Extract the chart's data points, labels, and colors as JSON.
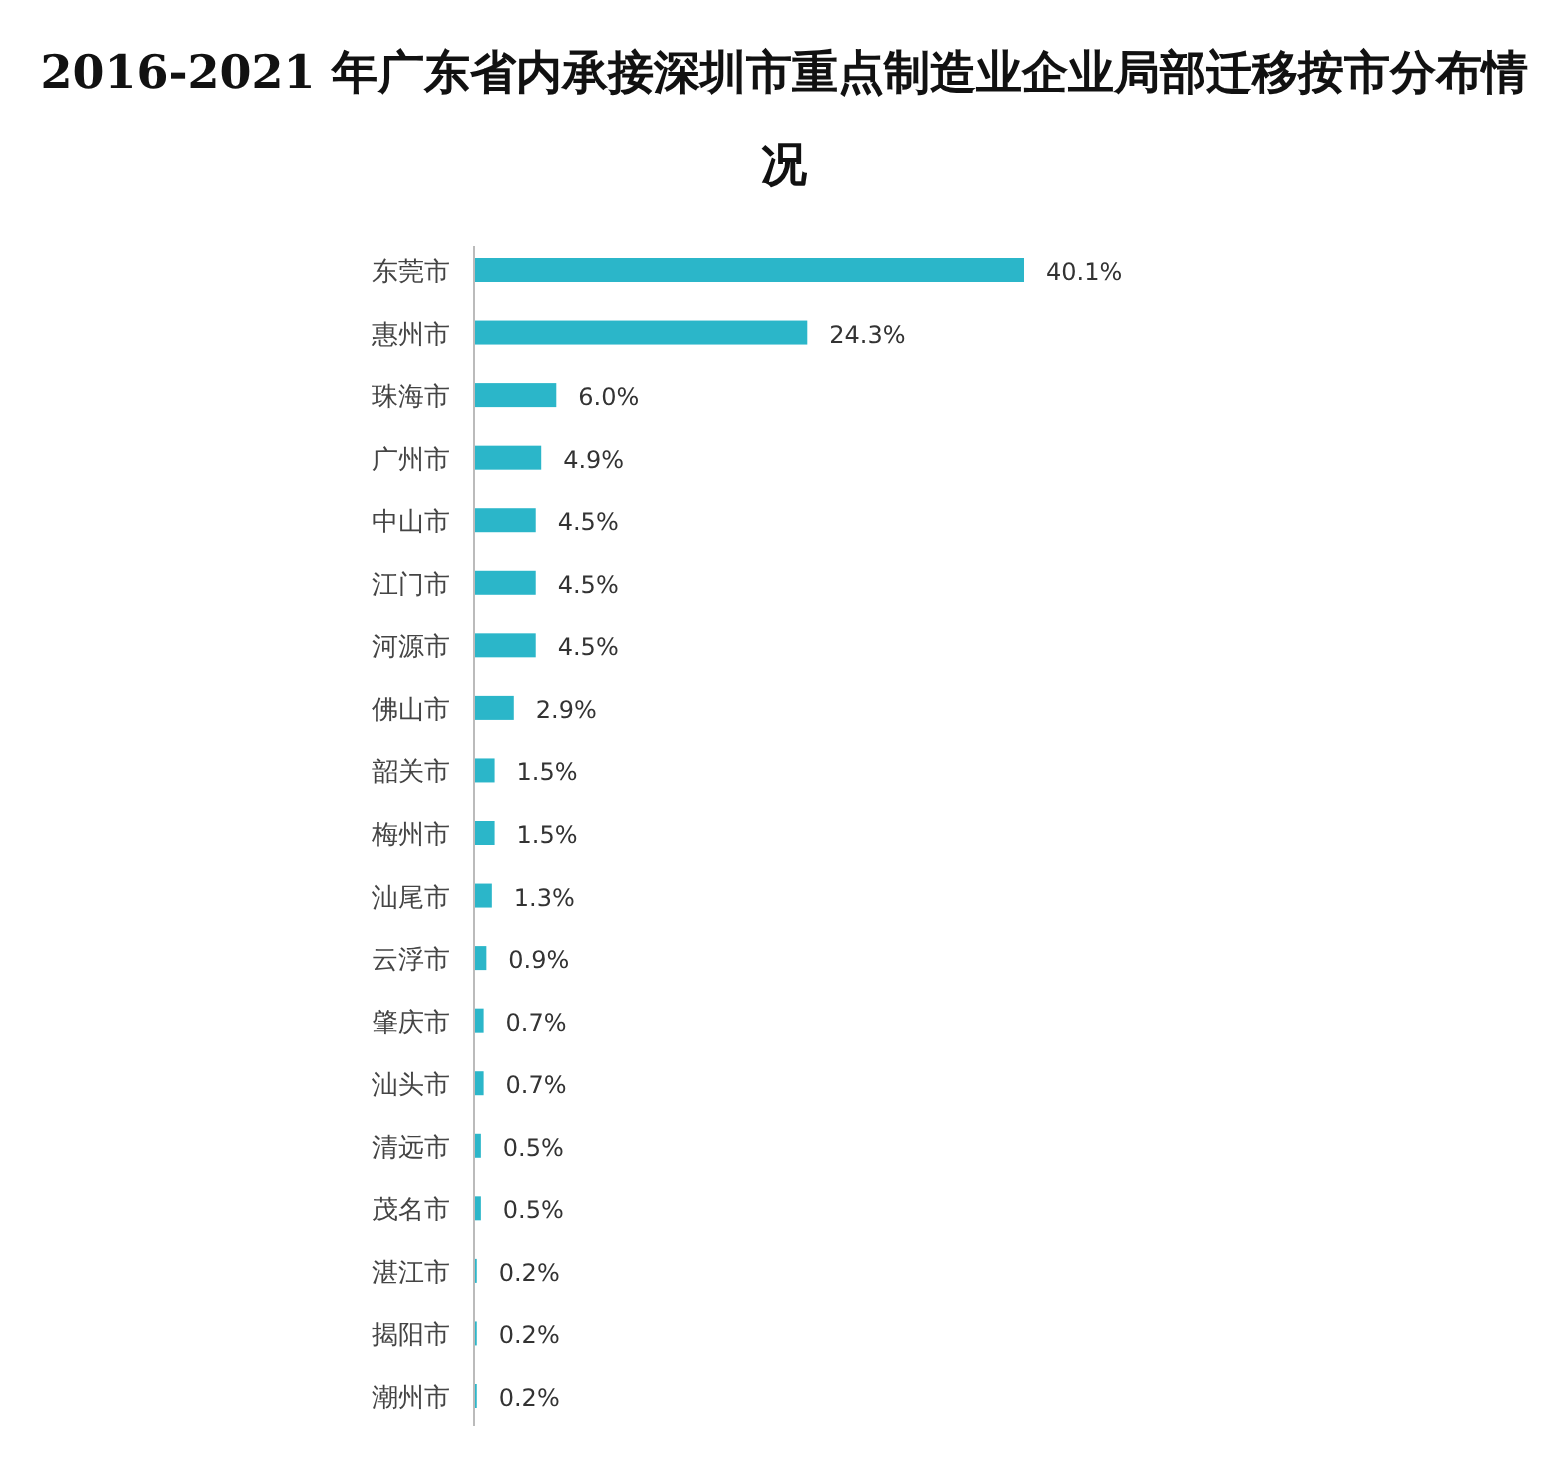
{
  "chart_data": {
    "type": "bar",
    "orientation": "horizontal",
    "title": "2016-2021 年广东省内承接深圳市重点制造业企业局部迁移按市分布情况",
    "categories": [
      "东莞市",
      "惠州市",
      "珠海市",
      "广州市",
      "中山市",
      "江门市",
      "河源市",
      "佛山市",
      "韶关市",
      "梅州市",
      "汕尾市",
      "云浮市",
      "肇庆市",
      "汕头市",
      "清远市",
      "茂名市",
      "湛江市",
      "揭阳市",
      "潮州市"
    ],
    "values": [
      40.1,
      24.3,
      6.0,
      4.9,
      4.5,
      4.5,
      4.5,
      2.9,
      1.5,
      1.5,
      1.3,
      0.9,
      0.7,
      0.7,
      0.5,
      0.5,
      0.2,
      0.2,
      0.2
    ],
    "value_labels": [
      "40.1%",
      "24.3%",
      "6.0%",
      "4.9%",
      "4.5%",
      "4.5%",
      "4.5%",
      "2.9%",
      "1.5%",
      "1.5%",
      "1.3%",
      "0.9%",
      "0.7%",
      "0.7%",
      "0.5%",
      "0.5%",
      "0.2%",
      "0.2%",
      "0.2%"
    ],
    "color": "#2bb6c9",
    "xlim": [
      0,
      40.1
    ],
    "tick_labels": "y"
  }
}
